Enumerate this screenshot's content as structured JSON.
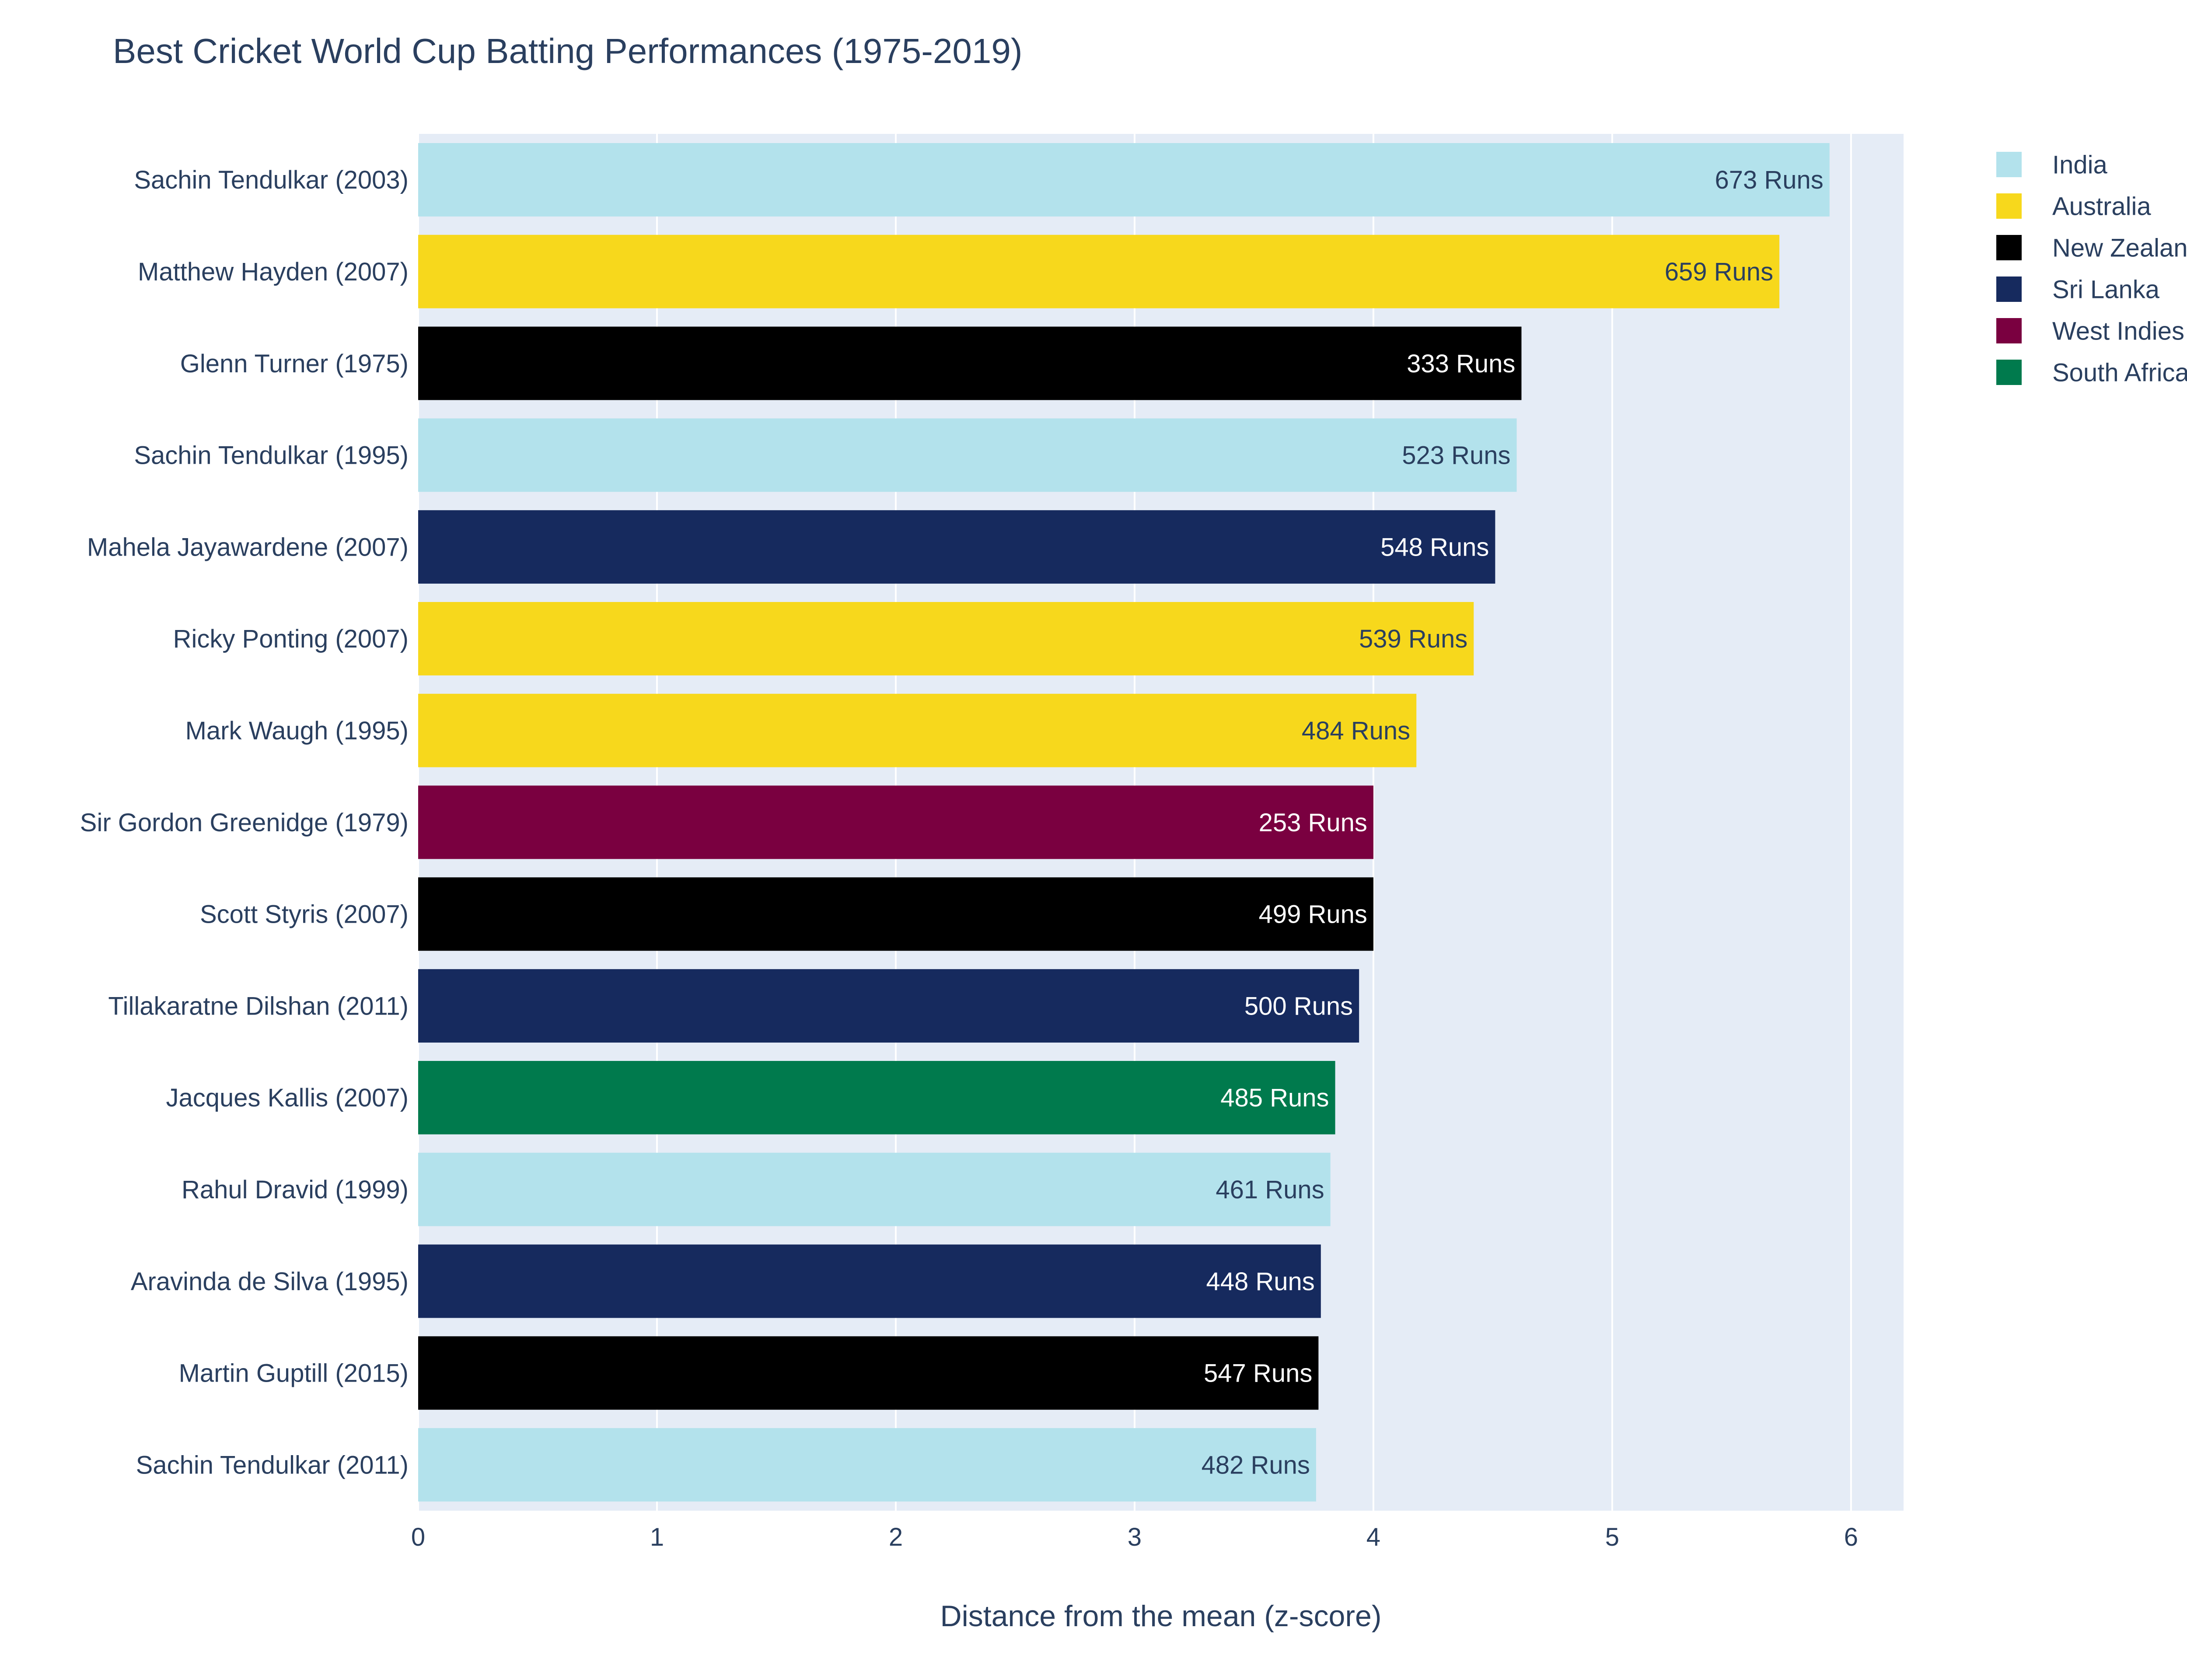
{
  "chart_data": {
    "type": "bar",
    "orientation": "horizontal",
    "title": "Best Cricket World Cup Batting Performances (1975-2019)",
    "xlabel": "Distance from the mean (z-score)",
    "ylabel": "",
    "xlim": [
      0,
      6.22
    ],
    "x_ticks": [
      0,
      1,
      2,
      3,
      4,
      5,
      6
    ],
    "grid": true,
    "legend_position": "top-right",
    "plot_background": "#e5ecf6",
    "gridline_color": "#ffffff",
    "text_color": "#2a3f5f",
    "categories": [
      "Sachin Tendulkar (2003)",
      "Matthew Hayden (2007)",
      "Glenn Turner (1975)",
      "Sachin Tendulkar (1995)",
      "Mahela Jayawardene (2007)",
      "Ricky Ponting (2007)",
      "Mark Waugh (1995)",
      "Sir Gordon Greenidge (1979)",
      "Scott Styris (2007)",
      "Tillakaratne Dilshan (2011)",
      "Jacques Kallis (2007)",
      "Rahul Dravid (1999)",
      "Aravinda de Silva (1995)",
      "Martin Guptill (2015)",
      "Sachin Tendulkar (2011)"
    ],
    "values": [
      5.91,
      5.7,
      4.62,
      4.6,
      4.51,
      4.42,
      4.18,
      4.0,
      4.0,
      3.94,
      3.84,
      3.82,
      3.78,
      3.77,
      3.76
    ],
    "bar_teams": [
      "India",
      "Australia",
      "New Zealand",
      "India",
      "Sri Lanka",
      "Australia",
      "Australia",
      "West Indies",
      "New Zealand",
      "Sri Lanka",
      "South Africa",
      "India",
      "Sri Lanka",
      "New Zealand",
      "India"
    ],
    "data_labels": [
      "673 Runs",
      "659 Runs",
      "333 Runs",
      "523 Runs",
      "548 Runs",
      "539 Runs",
      "484 Runs",
      "253 Runs",
      "499 Runs",
      "500 Runs",
      "485 Runs",
      "461 Runs",
      "448 Runs",
      "547 Runs",
      "482 Runs"
    ],
    "legend": [
      {
        "name": "India",
        "color": "#b3e2ec",
        "label_color": "#2a3f5f"
      },
      {
        "name": "Australia",
        "color": "#f7d81c",
        "label_color": "#2a3f5f"
      },
      {
        "name": "New Zealand",
        "color": "#000000",
        "label_color": "#ffffff"
      },
      {
        "name": "Sri Lanka",
        "color": "#162a5e",
        "label_color": "#ffffff"
      },
      {
        "name": "West Indies",
        "color": "#7a0040",
        "label_color": "#ffffff"
      },
      {
        "name": "South Africa",
        "color": "#007a4d",
        "label_color": "#ffffff"
      }
    ]
  }
}
